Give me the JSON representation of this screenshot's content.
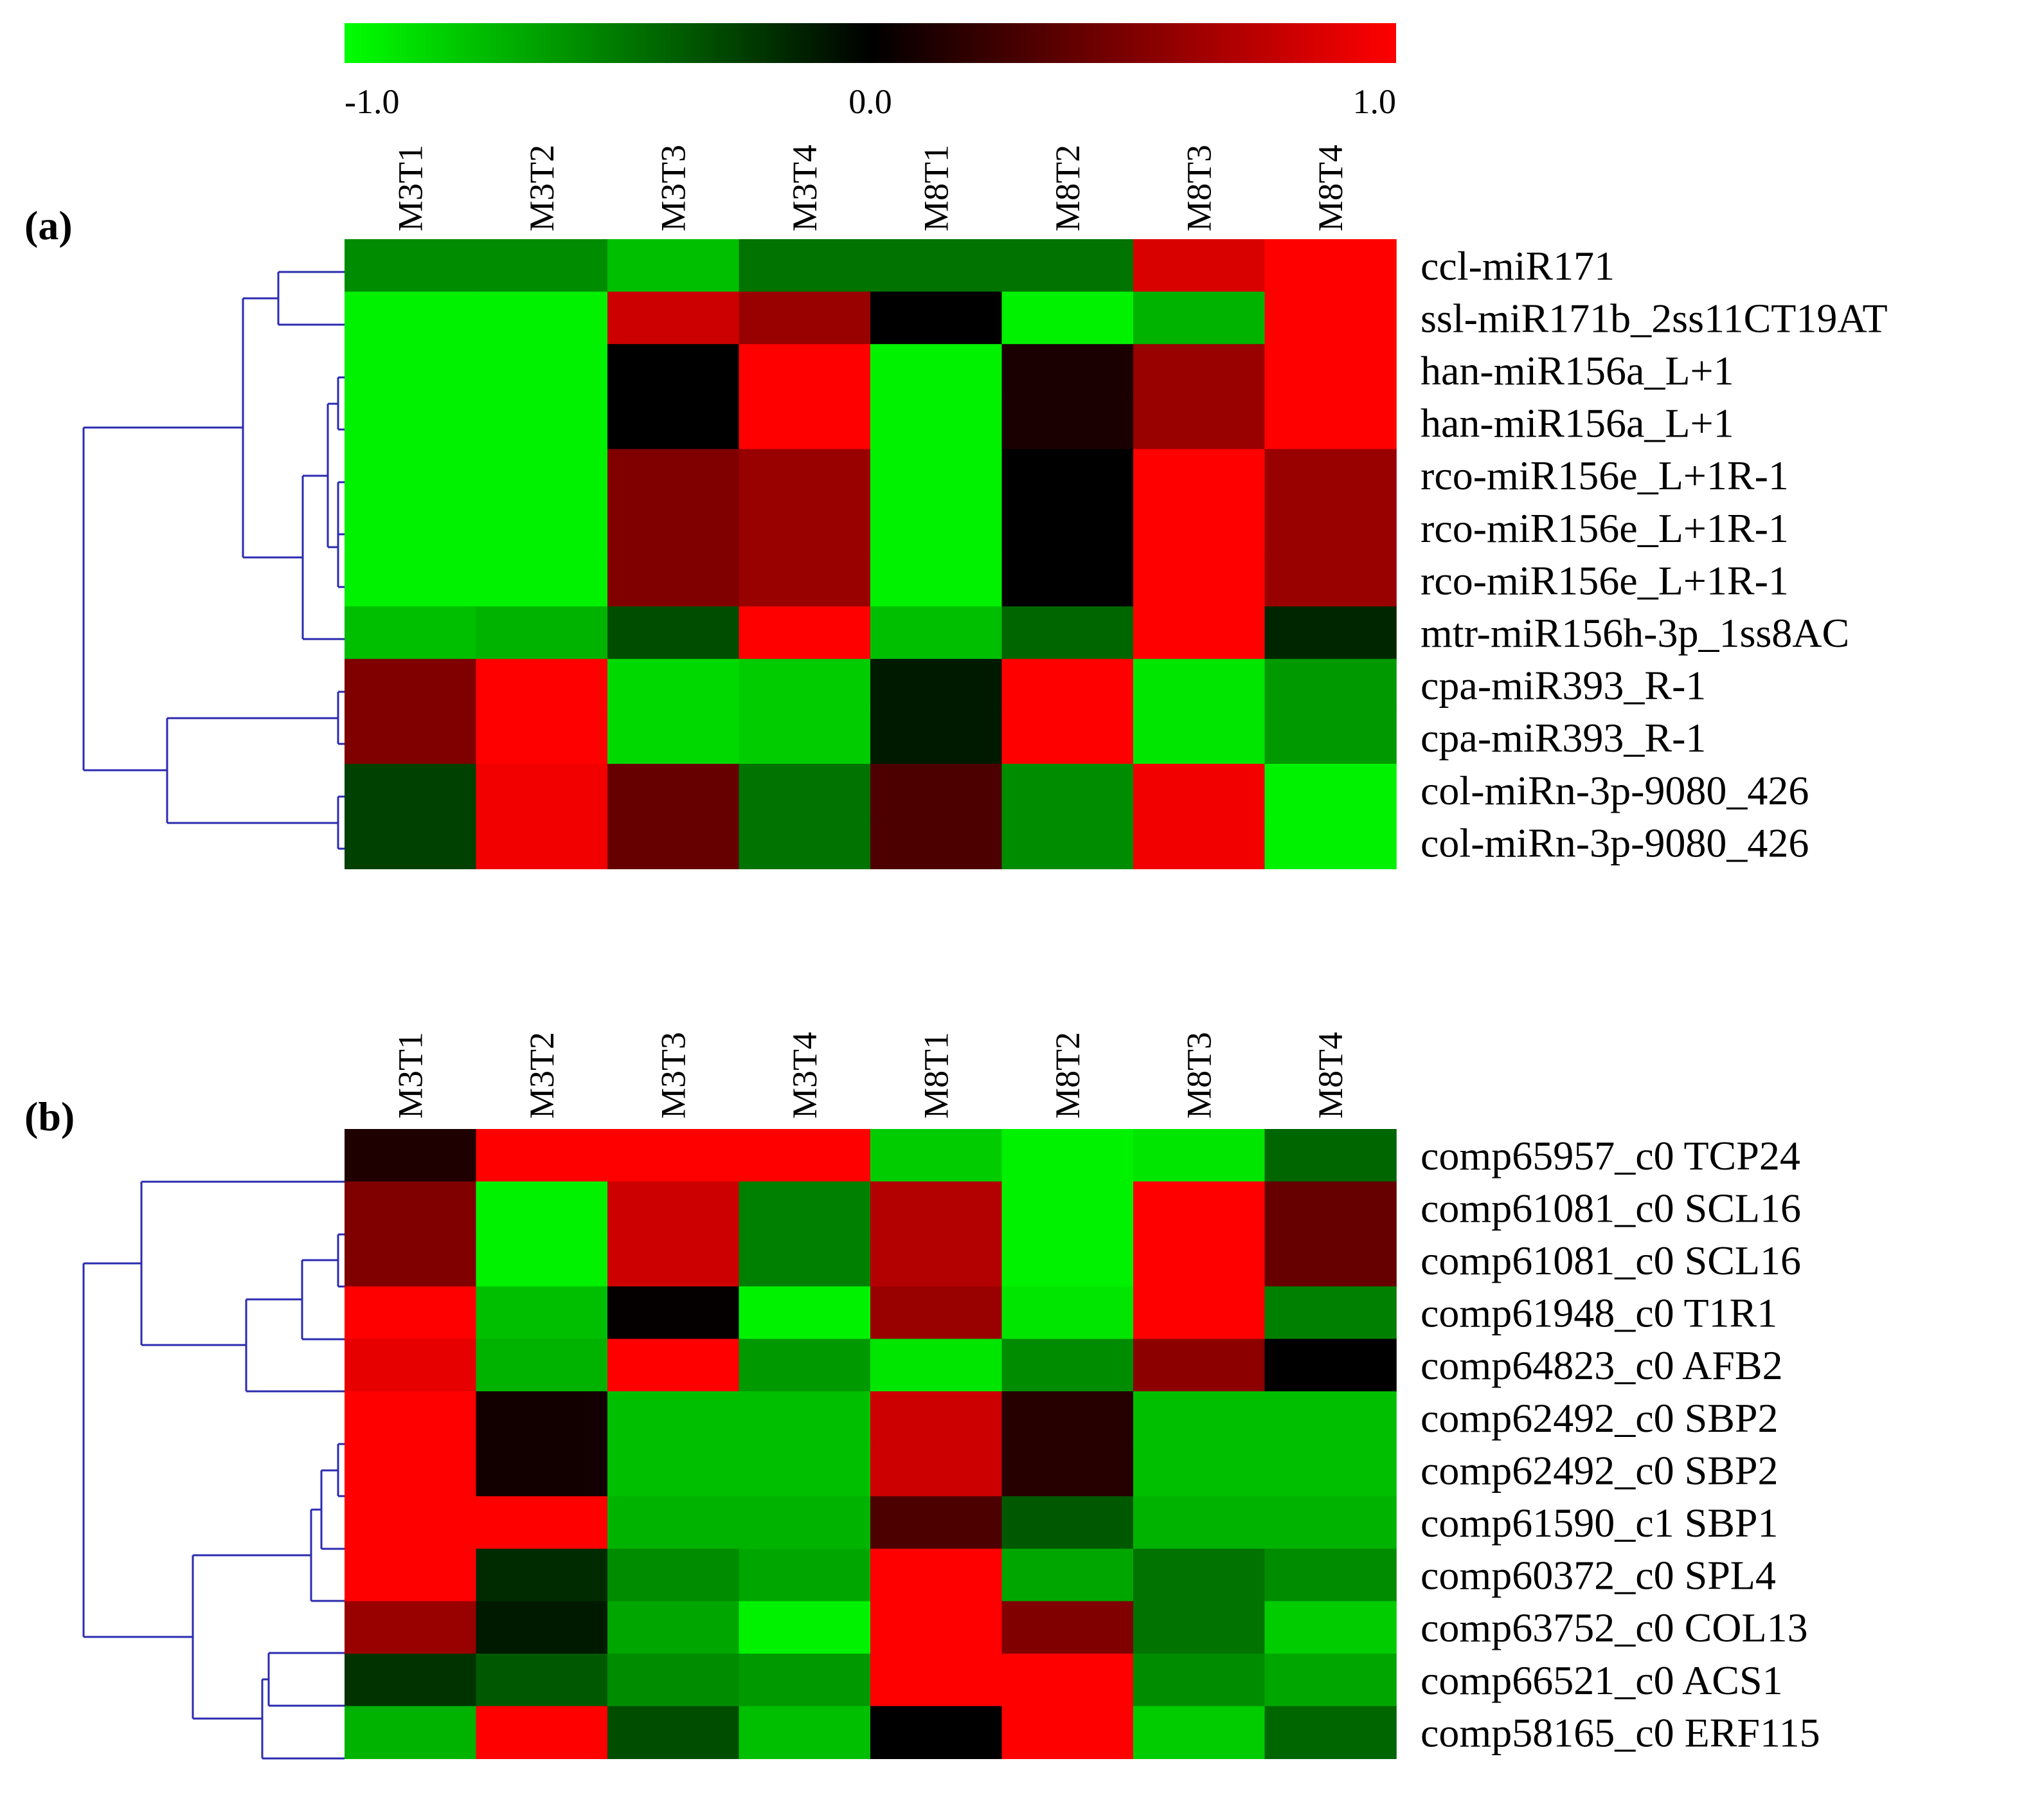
{
  "colorbar": {
    "low_color": "#00ff00",
    "mid_color": "#000000",
    "high_color": "#ff0000",
    "tick_values": [
      -1.0,
      0.0,
      1.0
    ],
    "tick_labels": [
      "-1.0",
      "0.0",
      "1.0"
    ]
  },
  "chart_data": [
    {
      "type": "heatmap",
      "panel_label": "(a)",
      "columns": [
        "M3T1",
        "M3T2",
        "M3T3",
        "M3T4",
        "M8T1",
        "M8T2",
        "M8T3",
        "M8T4"
      ],
      "rows": [
        "ccl-miR171",
        "ssl-miR171b_2ss11CT19AT",
        "han-miR156a_L+1",
        "han-miR156a_L+1",
        "rco-miR156e_L+1R-1",
        "rco-miR156e_L+1R-1",
        "rco-miR156e_L+1R-1",
        "mtr-miR156h-3p_1ss8AC",
        "cpa-miR393_R-1",
        "cpa-miR393_R-1",
        "col-miRn-3p-9080_426",
        "col-miRn-3p-9080_426"
      ],
      "values": [
        [
          -0.55,
          -0.55,
          -0.75,
          -0.45,
          -0.45,
          -0.45,
          0.85,
          1.0
        ],
        [
          -0.95,
          -0.95,
          0.8,
          0.6,
          0.0,
          -0.95,
          -0.7,
          1.0
        ],
        [
          -0.95,
          -0.95,
          0.0,
          1.0,
          -0.95,
          0.1,
          0.6,
          1.0
        ],
        [
          -0.95,
          -0.95,
          0.0,
          1.0,
          -0.95,
          0.1,
          0.6,
          1.0
        ],
        [
          -0.95,
          -0.95,
          0.5,
          0.6,
          -0.95,
          0.0,
          1.0,
          0.6
        ],
        [
          -0.95,
          -0.95,
          0.5,
          0.6,
          -0.95,
          0.0,
          1.0,
          0.6
        ],
        [
          -0.95,
          -0.95,
          0.5,
          0.6,
          -0.95,
          0.0,
          1.0,
          0.6
        ],
        [
          -0.75,
          -0.7,
          -0.3,
          1.0,
          -0.75,
          -0.4,
          1.0,
          -0.15
        ],
        [
          0.5,
          1.0,
          -0.85,
          -0.8,
          -0.1,
          1.0,
          -0.9,
          -0.6
        ],
        [
          0.5,
          1.0,
          -0.85,
          -0.8,
          -0.1,
          1.0,
          -0.9,
          -0.6
        ],
        [
          -0.25,
          0.95,
          0.4,
          -0.45,
          0.3,
          -0.55,
          0.95,
          -0.95
        ],
        [
          -0.25,
          0.95,
          0.4,
          -0.45,
          0.3,
          -0.55,
          0.95,
          -0.95
        ]
      ]
    },
    {
      "type": "heatmap",
      "panel_label": "(b)",
      "columns": [
        "M3T1",
        "M3T2",
        "M3T3",
        "M3T4",
        "M8T1",
        "M8T2",
        "M8T3",
        "M8T4"
      ],
      "rows": [
        "comp65957_c0 TCP24",
        "comp61081_c0 SCL16",
        "comp61081_c0 SCL16",
        "comp61948_c0 T1R1",
        "comp64823_c0 AFB2",
        "comp62492_c0 SBP2",
        "comp62492_c0 SBP2",
        "comp61590_c1 SBP1",
        "comp60372_c0 SPL4",
        "comp63752_c0 COL13",
        "comp66521_c0 ACS1",
        "comp58165_c0 ERF115"
      ],
      "values": [
        [
          0.12,
          1.0,
          1.0,
          1.0,
          -0.8,
          -0.95,
          -0.9,
          -0.4
        ],
        [
          0.5,
          -0.95,
          0.8,
          -0.5,
          0.7,
          -0.95,
          1.0,
          0.4
        ],
        [
          0.5,
          -0.95,
          0.8,
          -0.5,
          0.7,
          -0.95,
          1.0,
          0.4
        ],
        [
          1.0,
          -0.75,
          0.02,
          -0.95,
          0.6,
          -0.9,
          1.0,
          -0.5
        ],
        [
          0.9,
          -0.7,
          1.0,
          -0.6,
          -0.9,
          -0.55,
          0.55,
          0.0
        ],
        [
          1.0,
          0.07,
          -0.75,
          -0.75,
          0.8,
          0.15,
          -0.75,
          -0.75
        ],
        [
          1.0,
          0.07,
          -0.75,
          -0.75,
          0.8,
          0.15,
          -0.75,
          -0.75
        ],
        [
          1.0,
          1.0,
          -0.7,
          -0.7,
          0.3,
          -0.35,
          -0.7,
          -0.7
        ],
        [
          1.0,
          -0.17,
          -0.55,
          -0.65,
          1.0,
          -0.65,
          -0.45,
          -0.55
        ],
        [
          0.6,
          -0.1,
          -0.65,
          -0.95,
          1.0,
          0.5,
          -0.45,
          -0.8
        ],
        [
          -0.2,
          -0.35,
          -0.55,
          -0.6,
          1.0,
          1.0,
          -0.55,
          -0.65
        ],
        [
          -0.7,
          1.0,
          -0.3,
          -0.75,
          0.0,
          1.0,
          -0.8,
          -0.4
        ]
      ]
    }
  ]
}
